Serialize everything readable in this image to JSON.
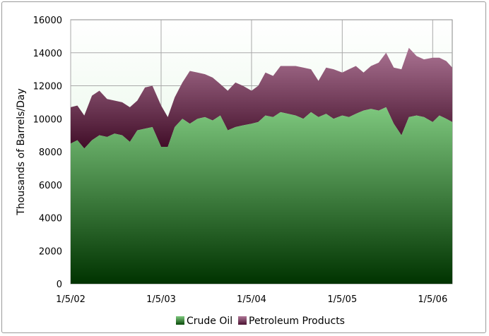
{
  "chart_data": {
    "type": "area",
    "stacked": true,
    "title": "",
    "xlabel": "",
    "ylabel": "Thousands of Barrels/Day",
    "ylim": [
      0,
      16000
    ],
    "yticks": [
      0,
      2000,
      4000,
      6000,
      8000,
      10000,
      12000,
      14000,
      16000
    ],
    "xticks": [
      "1/5/02",
      "1/5/03",
      "1/5/04",
      "1/5/05",
      "1/5/06"
    ],
    "xlim": [
      "2002-01-05",
      "2006-03-25"
    ],
    "grid": true,
    "legend_position": "bottom",
    "colors": {
      "crude_top": "#7fc97f",
      "crude_bottom": "#003300",
      "products_top": "#b07898",
      "products_bottom": "#3d0a24",
      "plot_top": "#ffffff",
      "plot_bottom": "#d8f2d8"
    },
    "x": [
      "2002-01-05",
      "2002-02-01",
      "2002-03-01",
      "2002-04-01",
      "2002-05-01",
      "2002-06-01",
      "2002-07-01",
      "2002-08-01",
      "2002-09-01",
      "2002-10-01",
      "2002-11-01",
      "2002-12-01",
      "2003-01-05",
      "2003-02-01",
      "2003-03-01",
      "2003-04-01",
      "2003-05-01",
      "2003-06-01",
      "2003-07-01",
      "2003-08-01",
      "2003-09-01",
      "2003-10-01",
      "2003-11-01",
      "2003-12-01",
      "2004-01-05",
      "2004-02-01",
      "2004-03-01",
      "2004-04-01",
      "2004-05-01",
      "2004-06-01",
      "2004-07-01",
      "2004-08-01",
      "2004-09-01",
      "2004-10-01",
      "2004-11-01",
      "2004-12-01",
      "2005-01-05",
      "2005-02-01",
      "2005-03-01",
      "2005-04-01",
      "2005-05-01",
      "2005-06-01",
      "2005-07-01",
      "2005-08-01",
      "2005-09-01",
      "2005-10-01",
      "2005-11-01",
      "2005-12-01",
      "2006-01-05",
      "2006-02-01",
      "2006-03-01",
      "2006-03-25"
    ],
    "series": [
      {
        "name": "Crude Oil",
        "values": [
          8500,
          8700,
          8200,
          8700,
          9000,
          8900,
          9100,
          9000,
          8600,
          9300,
          9400,
          9500,
          8300,
          8300,
          9500,
          10000,
          9700,
          10000,
          10100,
          9900,
          10200,
          9300,
          9500,
          9600,
          9700,
          9800,
          10200,
          10100,
          10400,
          10300,
          10200,
          10000,
          10400,
          10100,
          10300,
          10000,
          10200,
          10100,
          10300,
          10500,
          10600,
          10500,
          10700,
          9700,
          9000,
          10100,
          10200,
          10100,
          9800,
          10200,
          10000,
          9800
        ]
      },
      {
        "name": "Petroleum Products",
        "values": [
          2200,
          2100,
          2000,
          2700,
          2700,
          2300,
          2000,
          2000,
          2100,
          1800,
          2500,
          2500,
          2500,
          1800,
          1800,
          2200,
          3200,
          2800,
          2600,
          2600,
          1900,
          2400,
          2700,
          2400,
          2000,
          2200,
          2600,
          2500,
          2800,
          2900,
          3000,
          3100,
          2600,
          2200,
          2800,
          3000,
          2600,
          2900,
          2900,
          2300,
          2600,
          2900,
          3300,
          3400,
          4000,
          4200,
          3600,
          3500,
          3900,
          3500,
          3500,
          3300
        ]
      }
    ]
  }
}
